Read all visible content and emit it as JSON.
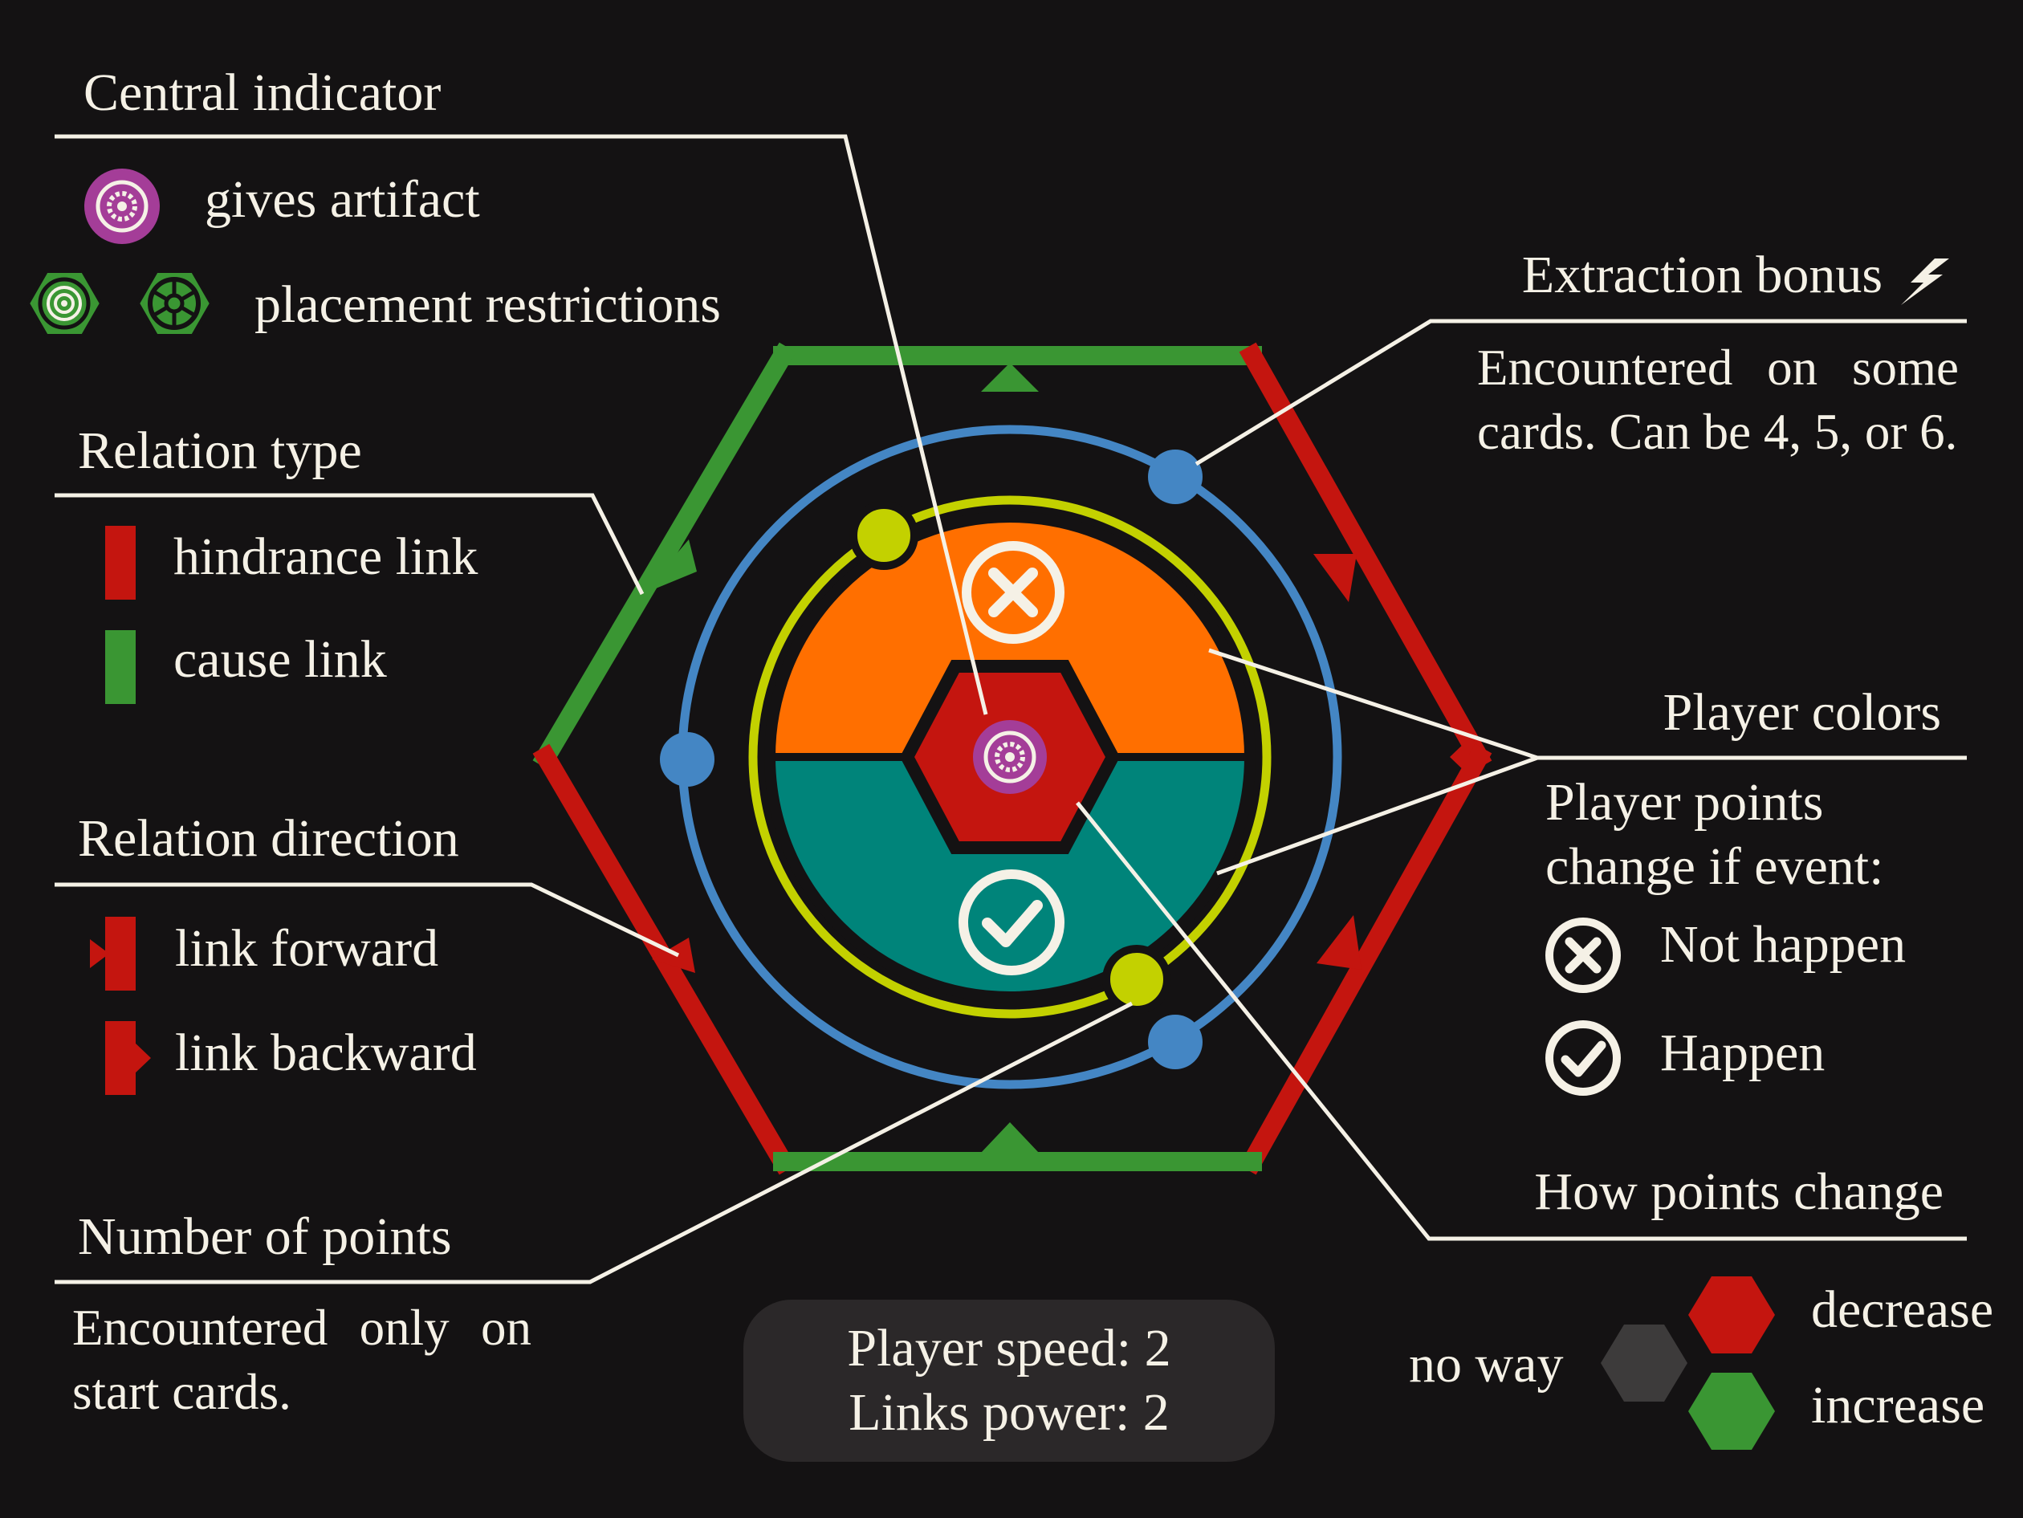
{
  "colors": {
    "background": "#141213",
    "text": "#f5f1e6",
    "hindrance": "#c4150f",
    "cause": "#3a9633",
    "orange": "#ff6f00",
    "teal": "#00847a",
    "ring_yellow": "#c3d100",
    "ring_blue": "#4486c4",
    "artifact": "#a43d98",
    "neutral": "#3d3b3b"
  },
  "central_indicator": {
    "heading": "Central indicator",
    "gives_artifact": "gives artifact",
    "placement_restrictions": "placement restrictions"
  },
  "relation_type": {
    "heading": "Relation type",
    "hindrance": "hindrance link",
    "cause": "cause link"
  },
  "relation_direction": {
    "heading": "Relation direction",
    "forward": "link forward",
    "backward": "link backward"
  },
  "number_of_points": {
    "heading": "Number of points",
    "note": "Encountered only on start cards."
  },
  "extraction_bonus": {
    "heading": "Extraction bonus",
    "icon": "lightning-icon",
    "note": "Encountered on some cards. Can be 4, 5, or 6."
  },
  "player_colors": {
    "heading": "Player colors",
    "note_line1": "Player points",
    "note_line2": "change if event:",
    "not_happen": "Not happen",
    "happen": "Happen"
  },
  "how_points_change": {
    "heading": "How points change",
    "no_way": "no way",
    "decrease": "decrease",
    "increase": "increase"
  },
  "info_box": {
    "speed": "Player speed: 2",
    "power": "Links power: 2"
  }
}
